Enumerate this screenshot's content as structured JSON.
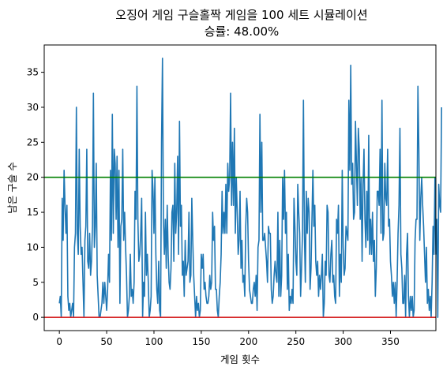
{
  "chart_data": {
    "type": "line",
    "title_line1": "오징어 게임 구슬홀짝 게임을 100 세트 시뮬레이션",
    "title_line2": "승률: 48.00%",
    "xlabel": "게임 횟수",
    "ylabel": "남은 구슬 수",
    "xlim": [
      -16,
      398
    ],
    "ylim": [
      -1.9,
      38.9
    ],
    "x_ticks": [
      0,
      50,
      100,
      150,
      200,
      250,
      300,
      350
    ],
    "y_ticks": [
      0,
      5,
      10,
      15,
      20,
      25,
      30,
      35
    ],
    "grid": false,
    "hlines": [
      {
        "y": 20,
        "color": "#008000"
      },
      {
        "y": 0,
        "color": "#d62728"
      }
    ],
    "series": [
      {
        "color": "#1f77b4",
        "values": [
          2,
          3,
          0,
          17,
          11,
          21,
          16,
          12,
          16,
          3,
          1,
          2,
          0,
          1,
          2,
          0,
          10,
          12,
          30,
          12,
          9,
          24,
          13,
          9,
          10,
          5,
          0,
          11,
          13,
          24,
          8,
          7,
          12,
          6,
          8,
          13,
          32,
          10,
          13,
          22,
          6,
          3,
          0,
          0,
          1,
          2,
          5,
          2,
          5,
          3,
          1,
          4,
          9,
          5,
          21,
          11,
          29,
          12,
          24,
          22,
          14,
          23,
          10,
          21,
          2,
          13,
          14,
          24,
          11,
          15,
          10,
          6,
          0,
          1,
          3,
          9,
          3,
          4,
          2,
          5,
          18,
          14,
          33,
          14,
          8,
          9,
          12,
          17,
          0,
          5,
          3,
          15,
          6,
          9,
          5,
          0,
          1,
          3,
          21,
          18,
          12,
          20,
          9,
          4,
          2,
          8,
          1,
          0,
          25,
          37,
          14,
          9,
          14,
          7,
          16,
          9,
          5,
          4,
          7,
          15,
          16,
          8,
          22,
          12,
          15,
          23,
          9,
          28,
          13,
          16,
          6,
          8,
          3,
          11,
          6,
          7,
          8,
          15,
          5,
          6,
          17,
          11,
          6,
          3,
          0,
          3,
          1,
          2,
          0,
          1,
          9,
          7,
          9,
          4,
          5,
          3,
          2,
          2,
          3,
          6,
          4,
          5,
          15,
          11,
          13,
          4,
          4,
          1,
          0,
          3,
          5,
          9,
          18,
          12,
          15,
          12,
          19,
          12,
          22,
          18,
          20,
          32,
          16,
          25,
          16,
          27,
          12,
          20,
          15,
          9,
          11,
          18,
          7,
          11,
          5,
          6,
          3,
          13,
          17,
          15,
          8,
          4,
          3,
          2,
          2,
          4,
          5,
          3,
          6,
          1,
          10,
          11,
          29,
          15,
          25,
          11,
          11,
          12,
          10,
          8,
          5,
          13,
          12,
          12,
          4,
          2,
          3,
          6,
          8,
          6,
          5,
          15,
          3,
          11,
          3,
          6,
          20,
          14,
          21,
          12,
          15,
          4,
          9,
          1,
          3,
          2,
          4,
          2,
          17,
          13,
          8,
          6,
          19,
          15,
          12,
          3,
          7,
          12,
          31,
          12,
          5,
          18,
          12,
          17,
          15,
          4,
          7,
          14,
          21,
          13,
          16,
          8,
          6,
          8,
          3,
          6,
          4,
          6,
          9,
          0,
          2,
          8,
          6,
          16,
          15,
          6,
          5,
          9,
          11,
          5,
          6,
          3,
          2,
          14,
          12,
          16,
          3,
          9,
          5,
          21,
          10,
          6,
          7,
          13,
          12,
          11,
          31,
          21,
          36,
          19,
          22,
          14,
          15,
          28,
          22,
          16,
          27,
          24,
          14,
          20,
          8,
          19,
          24,
          14,
          10,
          18,
          11,
          26,
          9,
          14,
          9,
          15,
          8,
          11,
          3,
          7,
          18,
          18,
          16,
          24,
          12,
          31,
          11,
          12,
          22,
          17,
          16,
          24,
          13,
          14,
          8,
          6,
          3,
          5,
          2,
          5,
          0,
          5,
          12,
          16,
          27,
          9,
          7,
          2,
          2,
          6,
          0,
          9,
          12,
          3,
          0,
          3,
          1,
          3,
          0,
          1,
          11,
          14,
          14,
          33,
          24,
          11,
          17,
          20,
          16,
          13,
          9,
          5,
          10,
          2,
          4,
          1,
          3,
          0,
          5,
          13,
          9,
          20,
          9,
          14,
          0,
          19,
          16,
          15,
          30
        ]
      }
    ]
  }
}
